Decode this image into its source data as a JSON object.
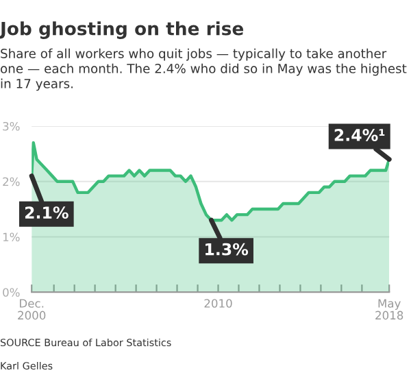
{
  "chart_data": {
    "type": "area",
    "title": "Job ghosting on the rise",
    "subtitle": "Share of all workers who quit jobs — typically to take another one — each month. The 2.4% who did so in May was the highest in 17 years.",
    "x": [
      "2000-12",
      "2001-01",
      "2001-03",
      "2001-06",
      "2001-09",
      "2001-12",
      "2002-03",
      "2002-06",
      "2002-09",
      "2002-12",
      "2003-03",
      "2003-06",
      "2003-09",
      "2003-12",
      "2004-03",
      "2004-06",
      "2004-09",
      "2004-12",
      "2005-03",
      "2005-06",
      "2005-09",
      "2005-12",
      "2006-03",
      "2006-06",
      "2006-09",
      "2006-12",
      "2007-03",
      "2007-06",
      "2007-09",
      "2007-12",
      "2008-03",
      "2008-06",
      "2008-09",
      "2008-12",
      "2009-03",
      "2009-06",
      "2009-09",
      "2009-12",
      "2010-03",
      "2010-06",
      "2010-09",
      "2010-12",
      "2011-03",
      "2011-06",
      "2011-09",
      "2011-12",
      "2012-03",
      "2012-06",
      "2012-09",
      "2012-12",
      "2013-03",
      "2013-06",
      "2013-09",
      "2013-12",
      "2014-03",
      "2014-06",
      "2014-09",
      "2014-12",
      "2015-03",
      "2015-06",
      "2015-09",
      "2015-12",
      "2016-03",
      "2016-06",
      "2016-09",
      "2016-12",
      "2017-03",
      "2017-06",
      "2017-09",
      "2017-12",
      "2018-03",
      "2018-05"
    ],
    "series": [
      {
        "color": "#3dbd7a",
        "values": [
          2.1,
          2.7,
          2.4,
          2.3,
          2.2,
          2.1,
          2.0,
          2.0,
          2.0,
          2.0,
          1.8,
          1.8,
          1.8,
          1.9,
          2.0,
          2.0,
          2.1,
          2.1,
          2.1,
          2.1,
          2.2,
          2.1,
          2.2,
          2.1,
          2.2,
          2.2,
          2.2,
          2.2,
          2.2,
          2.1,
          2.1,
          2.0,
          2.1,
          1.9,
          1.6,
          1.4,
          1.3,
          1.3,
          1.3,
          1.4,
          1.3,
          1.4,
          1.4,
          1.4,
          1.5,
          1.5,
          1.5,
          1.5,
          1.5,
          1.5,
          1.6,
          1.6,
          1.6,
          1.6,
          1.7,
          1.8,
          1.8,
          1.8,
          1.9,
          1.9,
          2.0,
          2.0,
          2.0,
          2.1,
          2.1,
          2.1,
          2.1,
          2.2,
          2.2,
          2.2,
          2.2,
          2.4
        ]
      }
    ],
    "xlim": [
      "2000-12",
      "2018-05"
    ],
    "xticks": [
      {
        "value": "2000-12",
        "label": "Dec.\n2000"
      },
      {
        "value": "2002-01",
        "label": null
      },
      {
        "value": "2003-01",
        "label": null
      },
      {
        "value": "2004-01",
        "label": null
      },
      {
        "value": "2005-01",
        "label": null
      },
      {
        "value": "2006-01",
        "label": null
      },
      {
        "value": "2007-01",
        "label": null
      },
      {
        "value": "2008-01",
        "label": null
      },
      {
        "value": "2009-01",
        "label": null
      },
      {
        "value": "2010-01",
        "label": "2010"
      },
      {
        "value": "2011-01",
        "label": null
      },
      {
        "value": "2012-01",
        "label": null
      },
      {
        "value": "2013-01",
        "label": null
      },
      {
        "value": "2014-01",
        "label": null
      },
      {
        "value": "2015-01",
        "label": null
      },
      {
        "value": "2016-01",
        "label": null
      },
      {
        "value": "2017-01",
        "label": null
      },
      {
        "value": "2018-05",
        "label": "May\n2018"
      }
    ],
    "ylim": [
      0,
      3
    ],
    "yticks": [
      {
        "value": 0,
        "label": "0%"
      },
      {
        "value": 1,
        "label": "1%"
      },
      {
        "value": 2,
        "label": "2%"
      },
      {
        "value": 3,
        "label": "3%"
      }
    ],
    "grid": "y",
    "annotations": [
      {
        "text": "2.1%",
        "x": "2000-12",
        "y": 2.1
      },
      {
        "text": "1.3%",
        "x": "2009-09",
        "y": 1.3
      },
      {
        "text": "2.4%¹",
        "x": "2018-05",
        "y": 2.4
      },
      "SOURCE Bureau of Labor Statistics",
      "Karl Gelles"
    ]
  }
}
